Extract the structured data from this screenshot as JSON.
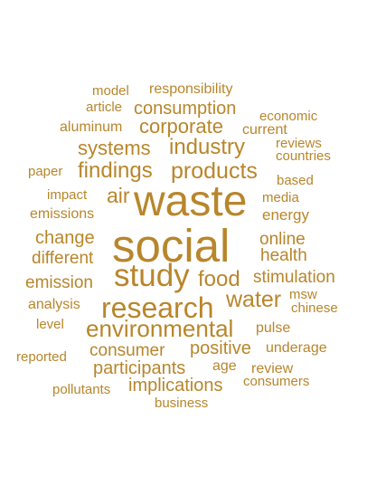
{
  "word_color": "#b8862b",
  "words": [
    {
      "text": "model",
      "size": "small"
    },
    {
      "text": "responsibility",
      "size": "small"
    },
    {
      "text": "article",
      "size": "small"
    },
    {
      "text": "consumption",
      "size": "medium"
    },
    {
      "text": "economic",
      "size": "small"
    },
    {
      "text": "aluminum",
      "size": "small"
    },
    {
      "text": "corporate",
      "size": "medium"
    },
    {
      "text": "current",
      "size": "small"
    },
    {
      "text": "reviews",
      "size": "small"
    },
    {
      "text": "systems",
      "size": "medium"
    },
    {
      "text": "industry",
      "size": "large"
    },
    {
      "text": "countries",
      "size": "small"
    },
    {
      "text": "paper",
      "size": "small"
    },
    {
      "text": "findings",
      "size": "large"
    },
    {
      "text": "products",
      "size": "large"
    },
    {
      "text": "based",
      "size": "small"
    },
    {
      "text": "impact",
      "size": "small"
    },
    {
      "text": "air",
      "size": "large"
    },
    {
      "text": "waste",
      "size": "largest"
    },
    {
      "text": "media",
      "size": "small"
    },
    {
      "text": "emissions",
      "size": "small"
    },
    {
      "text": "energy",
      "size": "small"
    },
    {
      "text": "change",
      "size": "medium"
    },
    {
      "text": "online",
      "size": "medium"
    },
    {
      "text": "social",
      "size": "largest"
    },
    {
      "text": "different",
      "size": "medium"
    },
    {
      "text": "health",
      "size": "medium"
    },
    {
      "text": "study",
      "size": "xlarge"
    },
    {
      "text": "food",
      "size": "large"
    },
    {
      "text": "emission",
      "size": "medium"
    },
    {
      "text": "stimulation",
      "size": "medium"
    },
    {
      "text": "msw",
      "size": "small"
    },
    {
      "text": "research",
      "size": "xlarge"
    },
    {
      "text": "water",
      "size": "large"
    },
    {
      "text": "analysis",
      "size": "small"
    },
    {
      "text": "chinese",
      "size": "small"
    },
    {
      "text": "level",
      "size": "small"
    },
    {
      "text": "environmental",
      "size": "large"
    },
    {
      "text": "pulse",
      "size": "small"
    },
    {
      "text": "consumer",
      "size": "medium"
    },
    {
      "text": "positive",
      "size": "medium"
    },
    {
      "text": "underage",
      "size": "small"
    },
    {
      "text": "reported",
      "size": "small"
    },
    {
      "text": "participants",
      "size": "medium"
    },
    {
      "text": "age",
      "size": "small"
    },
    {
      "text": "review",
      "size": "small"
    },
    {
      "text": "consumers",
      "size": "small"
    },
    {
      "text": "pollutants",
      "size": "small"
    },
    {
      "text": "implications",
      "size": "medium"
    },
    {
      "text": "business",
      "size": "small"
    }
  ]
}
